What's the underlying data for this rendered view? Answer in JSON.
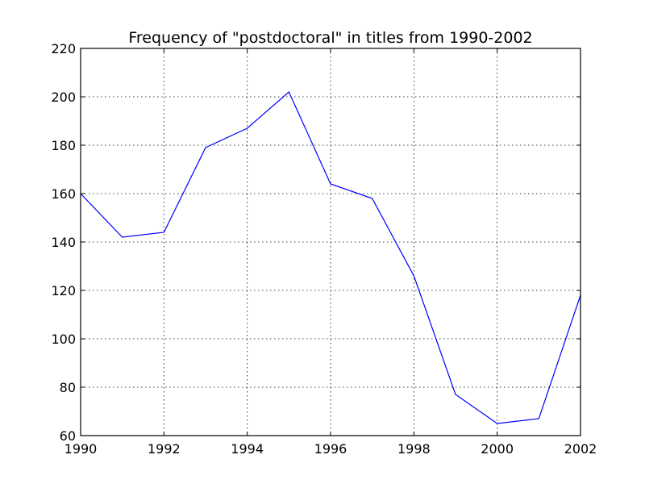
{
  "chart_data": {
    "type": "line",
    "title": "Frequency of \"postdoctoral\" in titles from 1990-2002",
    "xlabel": "",
    "ylabel": "",
    "xlim": [
      1990,
      2002
    ],
    "ylim": [
      60,
      220
    ],
    "grid": true,
    "x_ticks": [
      1990,
      1992,
      1994,
      1996,
      1998,
      2000,
      2002
    ],
    "x_tick_labels": [
      "1990",
      "1992",
      "1994",
      "1996",
      "1998",
      "2000",
      "2002"
    ],
    "y_ticks": [
      60,
      80,
      100,
      120,
      140,
      160,
      180,
      200,
      220
    ],
    "y_tick_labels": [
      "60",
      "80",
      "100",
      "120",
      "140",
      "160",
      "180",
      "200",
      "220"
    ],
    "line_color": "#0000ff",
    "series": [
      {
        "x": [
          1990,
          1991,
          1992,
          1993,
          1994,
          1995,
          1996,
          1997,
          1998,
          1999,
          2000,
          2001,
          2002
        ],
        "values": [
          160,
          142,
          144,
          179,
          187,
          202,
          164,
          158,
          126,
          77,
          65,
          67,
          118
        ]
      }
    ]
  }
}
